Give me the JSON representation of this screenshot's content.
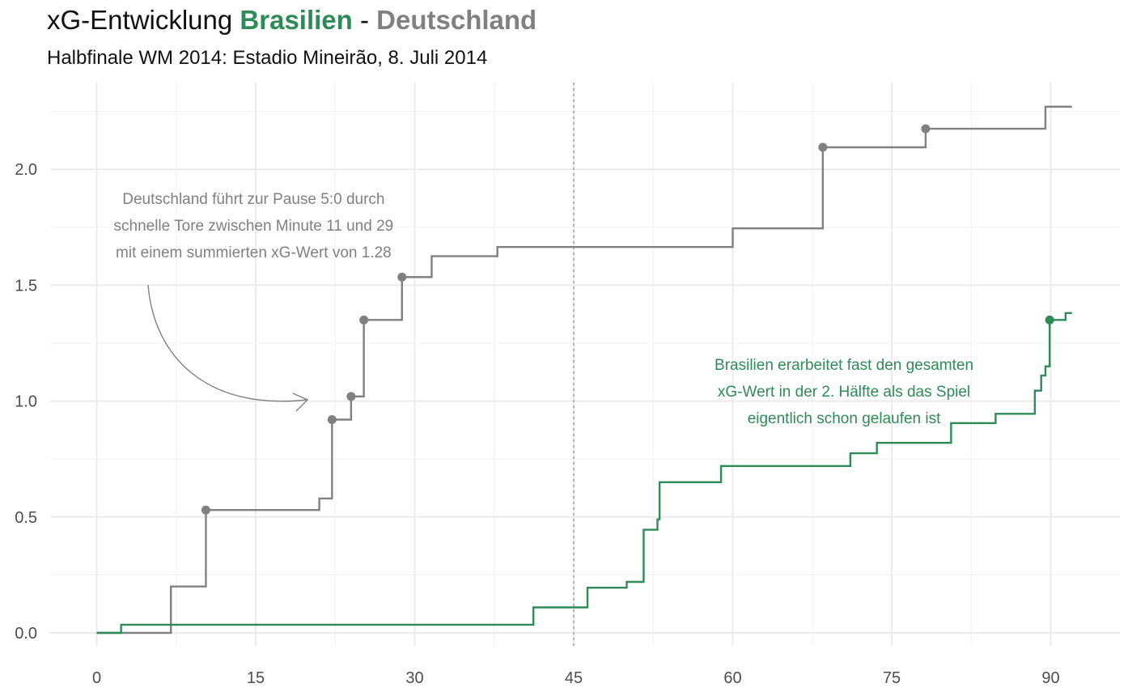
{
  "title": {
    "prefix": "xG-Entwicklung ",
    "team_a": "Brasilien",
    "separator": " - ",
    "team_b": "Deutschland"
  },
  "subtitle": "Halbfinale WM 2014: Estadio Mineirão, 8. Juli 2014",
  "chart_data": {
    "type": "line",
    "step": true,
    "title": "xG-Entwicklung Brasilien - Deutschland",
    "subtitle": "Halbfinale WM 2014: Estadio Mineirão, 8. Juli 2014",
    "xlabel": "",
    "ylabel": "",
    "xlim": [
      0,
      92
    ],
    "ylim": [
      0,
      2.3
    ],
    "x_ticks": [
      0,
      15,
      30,
      45,
      60,
      75,
      90
    ],
    "y_ticks": [
      0.0,
      0.5,
      1.0,
      1.5,
      2.0
    ],
    "y_tick_labels": [
      "0.0",
      "0.5",
      "1.0",
      "1.5",
      "2.0"
    ],
    "grid": true,
    "legend": "none",
    "halftime_line_x": 45,
    "series": [
      {
        "name": "Deutschland",
        "color": "#808080",
        "x": [
          0,
          7,
          10.3,
          21,
          22.2,
          24,
          25.2,
          28.8,
          31.6,
          37.8,
          60,
          68.5,
          78.2,
          89.5,
          92
        ],
        "y": [
          0,
          0.2,
          0.53,
          0.58,
          0.92,
          1.02,
          1.35,
          1.535,
          1.625,
          1.665,
          1.745,
          2.095,
          2.175,
          2.27,
          2.27
        ],
        "goals": [
          {
            "x": 10.3,
            "y": 0.53
          },
          {
            "x": 22.2,
            "y": 0.92
          },
          {
            "x": 24,
            "y": 1.02
          },
          {
            "x": 25.2,
            "y": 1.35
          },
          {
            "x": 28.8,
            "y": 1.535
          },
          {
            "x": 68.5,
            "y": 2.095
          },
          {
            "x": 78.2,
            "y": 2.175
          }
        ]
      },
      {
        "name": "Brasilien",
        "color": "#2e8b57",
        "x": [
          0,
          2.3,
          41.2,
          46.3,
          50,
          51.6,
          52.9,
          53.1,
          58.9,
          71.1,
          73.6,
          80.6,
          84.8,
          88.5,
          89.1,
          89.5,
          89.9,
          91.4,
          92
        ],
        "y": [
          0,
          0.035,
          0.11,
          0.195,
          0.22,
          0.445,
          0.49,
          0.65,
          0.72,
          0.775,
          0.82,
          0.905,
          0.945,
          1.045,
          1.11,
          1.15,
          1.35,
          1.38,
          1.38
        ],
        "goals": [
          {
            "x": 89.9,
            "y": 1.35
          }
        ]
      }
    ],
    "annotations": [
      {
        "lines": [
          "Deutschland führt zur Pause 5:0 durch",
          "schnelle Tore zwischen Minute 11 und 29",
          "mit einem summierten xG-Wert von 1.28"
        ],
        "color": "#808080",
        "x": 14.8,
        "y": 1.85
      },
      {
        "lines": [
          "Brasilien erarbeitet fast den gesamten",
          "xG-Wert in der 2. Hälfte als das Spiel",
          "eigentlich schon gelaufen ist"
        ],
        "color": "#2e8b57",
        "x": 70.5,
        "y": 1.135
      }
    ]
  }
}
